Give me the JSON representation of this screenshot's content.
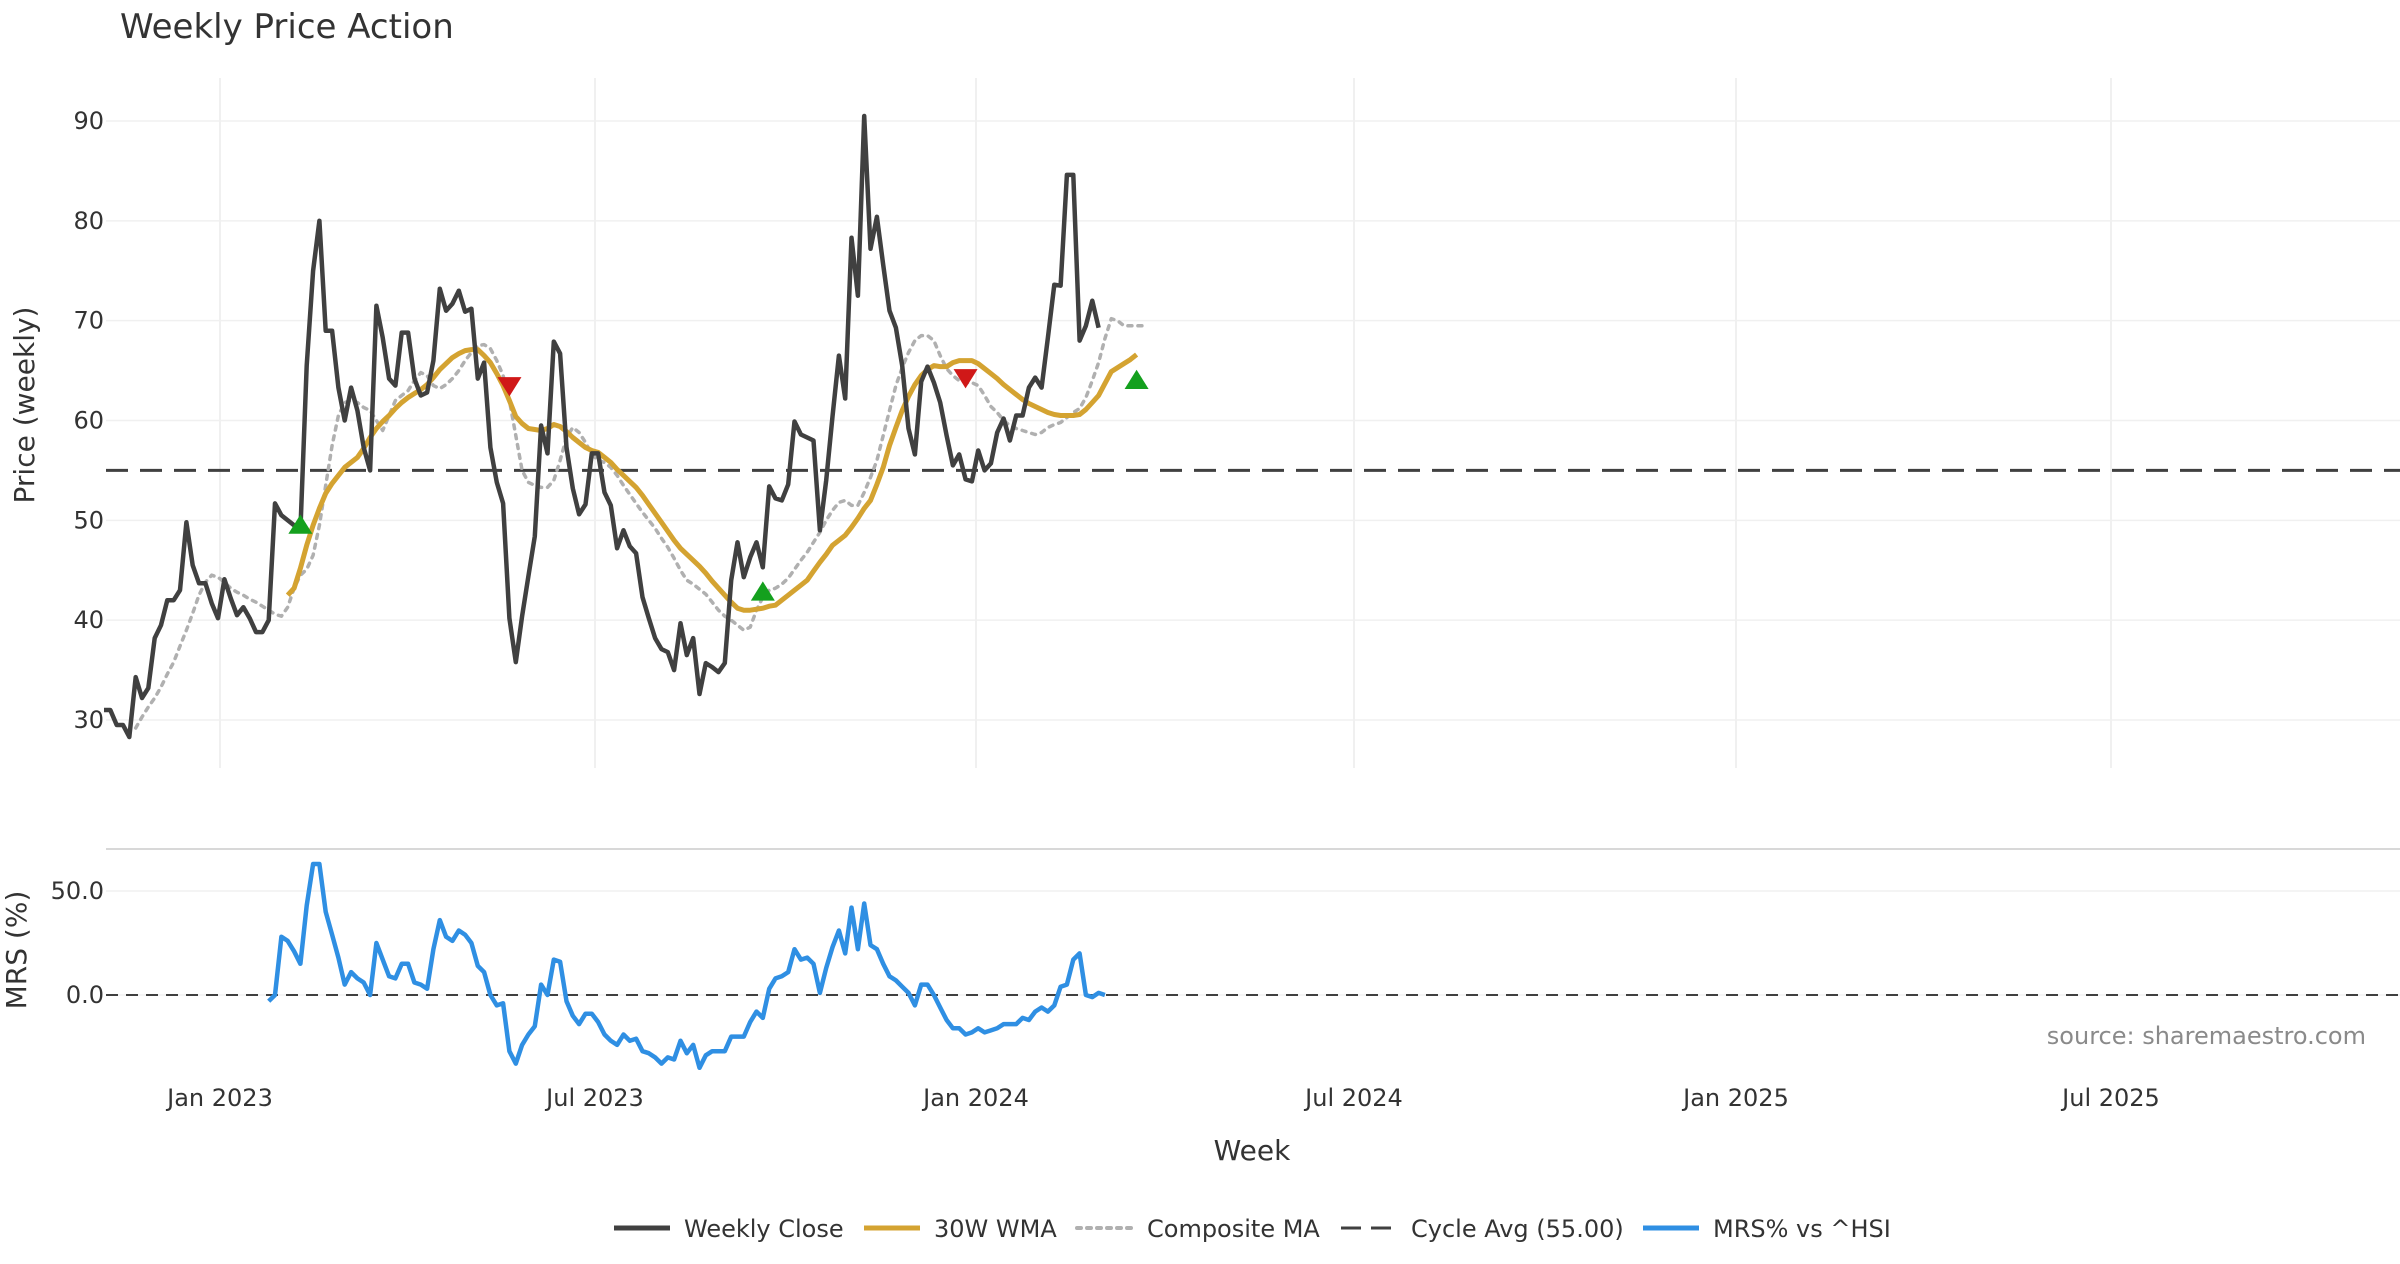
{
  "chart_data": {
    "type": "line",
    "title": "Weekly Price Action",
    "xlabel": "Week",
    "x_ticks": [
      "Jan 2023",
      "Jul 2023",
      "Jan 2024",
      "Jul 2024",
      "Jan 2025",
      "Jul 2025"
    ],
    "source": "source: sharemaestro.com",
    "price_panel": {
      "ylabel": "Price (weekly)",
      "ylim": [
        25,
        93
      ],
      "yticks": [
        "30",
        "40",
        "50",
        "60",
        "70",
        "80",
        "90"
      ],
      "cycle_avg": 55.0,
      "series": [
        {
          "name": "Weekly Close",
          "color": "#404040",
          "start_week": 0,
          "values": [
            31,
            31,
            29.5,
            29.5,
            28.3,
            34.3,
            32.2,
            33.2,
            38.2,
            39.5,
            42,
            42,
            43,
            49.8,
            45.5,
            43.7,
            43.7,
            41.7,
            40.2,
            44.1,
            42.2,
            40.5,
            41.3,
            40.2,
            38.8,
            38.8,
            40,
            51.7,
            50.5,
            50,
            49.5,
            49,
            65.5,
            75,
            80,
            69,
            69,
            63.3,
            60,
            63.3,
            61,
            57.3,
            55,
            71.5,
            68.3,
            64.2,
            63.5,
            68.8,
            68.8,
            64.2,
            62.5,
            62.8,
            66,
            73.2,
            71,
            71.7,
            73,
            70.9,
            71.2,
            64.2,
            65.8,
            57.3,
            53.8,
            51.7,
            40.2,
            35.8,
            40.4,
            44.4,
            48.4,
            59.5,
            56.7,
            67.9,
            66.7,
            57.3,
            53.2,
            50.6,
            51.6,
            56.7,
            56.7,
            52.8,
            51.5,
            47.2,
            49,
            47.4,
            46.7,
            42.3,
            40.2,
            38.2,
            37.1,
            36.8,
            35,
            39.7,
            36.5,
            38.2,
            32.6,
            35.7,
            35.3,
            34.8,
            35.7,
            44,
            47.8,
            44.3,
            46.3,
            47.8,
            45.3,
            53.4,
            52.2,
            52,
            53.6,
            59.9,
            58.6,
            58.3,
            58,
            49,
            54,
            60.4,
            66.5,
            62.2,
            78.3,
            72.5,
            90.5,
            77.2,
            80.4,
            75.6,
            71,
            69.3,
            65.5,
            59.2,
            56.6,
            63.9,
            65.4,
            63.8,
            61.8,
            58.5,
            55.5,
            56.6,
            54.1,
            53.9,
            57,
            55,
            55.7,
            58.8,
            60.2,
            58,
            60.5,
            60.5,
            63.3,
            64.3,
            63.3,
            68.3,
            73.6,
            73.5,
            84.6,
            84.6,
            68,
            69.5,
            72,
            69.3
          ]
        },
        {
          "name": "30W WMA",
          "color": "#d4a331",
          "start_week": 29,
          "values": [
            42.5,
            43.2,
            45.2,
            47.5,
            49.5,
            51.2,
            52.7,
            53.7,
            54.5,
            55.3,
            55.8,
            56.3,
            57.2,
            58.3,
            59.2,
            59.9,
            60.5,
            61.2,
            61.8,
            62.3,
            62.7,
            63.1,
            63.6,
            64.3,
            65.1,
            65.7,
            66.3,
            66.7,
            67,
            67.1,
            67.1,
            66.5,
            65.8,
            64.7,
            63.5,
            62,
            60.4,
            59.7,
            59.2,
            59.1,
            59,
            59.2,
            59.6,
            59.4,
            58.9,
            58.3,
            57.8,
            57.3,
            57,
            56.8,
            56.3,
            55.8,
            55.1,
            54.5,
            53.9,
            53.3,
            52.5,
            51.6,
            50.7,
            49.8,
            48.9,
            48,
            47.2,
            46.6,
            46,
            45.4,
            44.7,
            43.9,
            43.2,
            42.5,
            41.8,
            41.2,
            41,
            41,
            41.1,
            41.2,
            41.4,
            41.5,
            42,
            42.5,
            43,
            43.5,
            44,
            44.9,
            45.8,
            46.6,
            47.5,
            48,
            48.5,
            49.3,
            50.2,
            51.2,
            52,
            53.6,
            55.3,
            57.5,
            59.3,
            61,
            62.4,
            63.6,
            64.5,
            65.1,
            65.5,
            65.4,
            65.4,
            65.8,
            66,
            66,
            66,
            65.7,
            65.2,
            64.7,
            64.2,
            63.6,
            63.1,
            62.6,
            62.1,
            61.7,
            61.4,
            61.1,
            60.8,
            60.6,
            60.5,
            60.5,
            60.5,
            60.6,
            61.1,
            61.8,
            62.5,
            63.7,
            64.9,
            65.3,
            65.7,
            66.1,
            66.6
          ]
        },
        {
          "name": "Composite MA",
          "color": "#b0b0b0",
          "start_week": 5,
          "values": [
            29.2,
            30.3,
            31.3,
            32.2,
            33.3,
            34.6,
            35.8,
            37.4,
            39,
            40.7,
            42.5,
            43.8,
            44.5,
            44.3,
            43.8,
            43.2,
            42.8,
            42.5,
            42.1,
            41.8,
            41.4,
            41,
            40.6,
            40.4,
            41.3,
            43.2,
            44.5,
            45.1,
            46.5,
            49.5,
            53.5,
            57.5,
            60.5,
            61.8,
            62,
            61.8,
            61.3,
            61,
            60,
            59,
            60.5,
            62,
            62.5,
            63,
            64,
            64.8,
            64.5,
            63.5,
            63.2,
            63.6,
            64.2,
            65,
            66,
            66.8,
            67.5,
            67.6,
            67.2,
            66,
            64.5,
            62,
            58.5,
            55,
            53.8,
            53.5,
            53.3,
            53.3,
            54,
            56,
            58.3,
            59.3,
            58.8,
            57.8,
            56.6,
            56,
            55.8,
            55.3,
            54.5,
            53.5,
            52.6,
            51.7,
            50.8,
            50,
            49.2,
            48.2,
            47.3,
            46.2,
            45,
            44,
            43.6,
            43.1,
            42.6,
            41.8,
            41,
            40.4,
            40,
            39.5,
            39,
            39.3,
            41,
            42.3,
            43,
            43.2,
            43.6,
            44.2,
            45.1,
            46,
            46.8,
            47.8,
            48.8,
            50,
            51,
            51.8,
            52,
            51.5,
            51.5,
            52.8,
            54.3,
            56,
            58.5,
            61,
            63.5,
            65.3,
            66.8,
            68,
            68.5,
            68.5,
            68,
            66.5,
            65.2,
            64.5,
            64,
            63.8,
            63.8,
            63.5,
            62.5,
            61.4,
            60.8,
            60,
            59.5,
            59.2,
            59,
            58.8,
            58.6,
            58.8,
            59.3,
            59.6,
            59.8,
            60.3,
            60.8,
            61.2,
            62.3,
            64,
            65.8,
            68.2,
            70.2,
            70,
            69.5,
            69.5,
            69.5,
            69.5
          ]
        }
      ],
      "markers": [
        {
          "type": "buy",
          "week": 31,
          "value": 49.5,
          "color": "#14a01e"
        },
        {
          "type": "sell",
          "week": 64,
          "value": 63.5,
          "color": "#d01818"
        },
        {
          "type": "buy",
          "week": 104,
          "value": 42.8,
          "color": "#14a01e"
        },
        {
          "type": "sell",
          "week": 136,
          "value": 64.3,
          "color": "#d01818"
        },
        {
          "type": "buy",
          "week": 163,
          "value": 64,
          "color": "#14a01e"
        }
      ]
    },
    "mrs_panel": {
      "ylabel": "MRS (%)",
      "ylim": [
        -42,
        70
      ],
      "yticks": [
        "50.0",
        "0.0"
      ],
      "series": [
        {
          "name": "MRS% vs ^HSI",
          "color": "#2f8fe3",
          "start_week": 26,
          "values": [
            -3,
            0,
            28,
            26,
            21,
            15,
            43,
            63,
            63,
            40,
            29,
            18,
            5,
            11,
            8,
            6,
            0,
            25,
            17,
            9,
            8,
            15,
            15,
            6,
            5,
            3,
            22,
            36,
            28,
            26,
            31,
            29,
            25,
            14,
            11,
            0,
            -5,
            -4,
            -27,
            -33,
            -24,
            -19,
            -15,
            5,
            0,
            17,
            16,
            -3,
            -10,
            -14,
            -9,
            -9,
            -13,
            -19,
            -22,
            -24,
            -19,
            -22,
            -21,
            -27,
            -28,
            -30,
            -33,
            -30,
            -31,
            -22,
            -28,
            -24,
            -35,
            -29,
            -27,
            -27,
            -27,
            -20,
            -20,
            -20,
            -13,
            -8,
            -11,
            3,
            8,
            9,
            11,
            22,
            17,
            18,
            15,
            1,
            13,
            23,
            31,
            20,
            42,
            22,
            44,
            24,
            22,
            15,
            9,
            7,
            4,
            1,
            -5,
            5,
            5,
            0,
            -6,
            -12,
            -16,
            -16,
            -19,
            -18,
            -16,
            -18,
            -17,
            -16,
            -14,
            -14,
            -14,
            -11,
            -12,
            -8,
            -6,
            -8,
            -5,
            4,
            5,
            17,
            20,
            0,
            -1,
            1,
            0
          ]
        }
      ]
    },
    "legend": [
      {
        "label": "Weekly Close",
        "style": "solid",
        "color": "#404040"
      },
      {
        "label": "30W WMA",
        "style": "solid",
        "color": "#d4a331"
      },
      {
        "label": "Composite MA",
        "style": "dotted",
        "color": "#b0b0b0"
      },
      {
        "label": "Cycle Avg (55.00)",
        "style": "dashed",
        "color": "#404040"
      },
      {
        "label": "MRS% vs ^HSI",
        "style": "solid",
        "color": "#2f8fe3"
      }
    ]
  }
}
